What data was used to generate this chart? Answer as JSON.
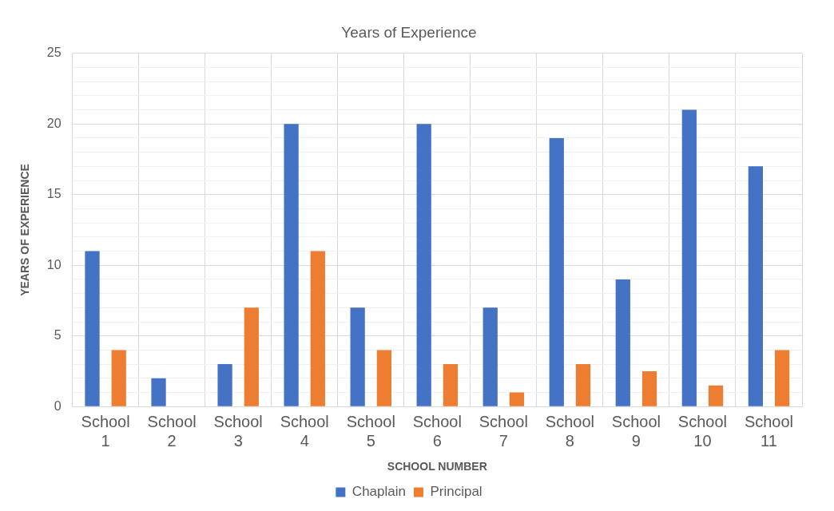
{
  "chart_data": {
    "type": "bar",
    "title": "Years of Experience",
    "xlabel": "SCHOOL NUMBER",
    "ylabel": "YEARS OF EXPERIENCE",
    "categories": [
      "School 1",
      "School 2",
      "School 3",
      "School 4",
      "School 5",
      "School 6",
      "School 7",
      "School 8",
      "School 9",
      "School 10",
      "School 11"
    ],
    "series": [
      {
        "name": "Chaplain",
        "color": "#4472c4",
        "values": [
          11,
          2,
          3,
          20,
          7,
          20,
          7,
          19,
          9,
          21,
          17
        ]
      },
      {
        "name": "Principal",
        "color": "#ed7d31",
        "values": [
          4,
          0,
          7,
          11,
          4,
          3,
          1,
          3,
          2.5,
          1.5,
          4
        ]
      }
    ],
    "ylim": [
      0,
      25
    ],
    "yticks": [
      0,
      {
        "value": 1,
        "label": null
      },
      {
        "value": 2,
        "label": null
      },
      {
        "value": 3,
        "label": null
      },
      {
        "value": 4,
        "label": null
      },
      5,
      {
        "value": 6,
        "label": null
      },
      {
        "value": 7,
        "label": null
      },
      {
        "value": 8,
        "label": null
      },
      {
        "value": 9,
        "label": null
      },
      10,
      {
        "value": 11,
        "label": null
      },
      {
        "value": 12,
        "label": null
      },
      {
        "value": 13,
        "label": null
      },
      {
        "value": 14,
        "label": null
      },
      15,
      {
        "value": 16,
        "label": null
      },
      {
        "value": 17,
        "label": null
      },
      {
        "value": 18,
        "label": null
      },
      {
        "value": 19,
        "label": null
      },
      20,
      {
        "value": 21,
        "label": null
      },
      {
        "value": 22,
        "label": null
      },
      {
        "value": 23,
        "label": null
      },
      {
        "value": 24,
        "label": null
      },
      25
    ],
    "grid": true,
    "legend": "bottom"
  }
}
